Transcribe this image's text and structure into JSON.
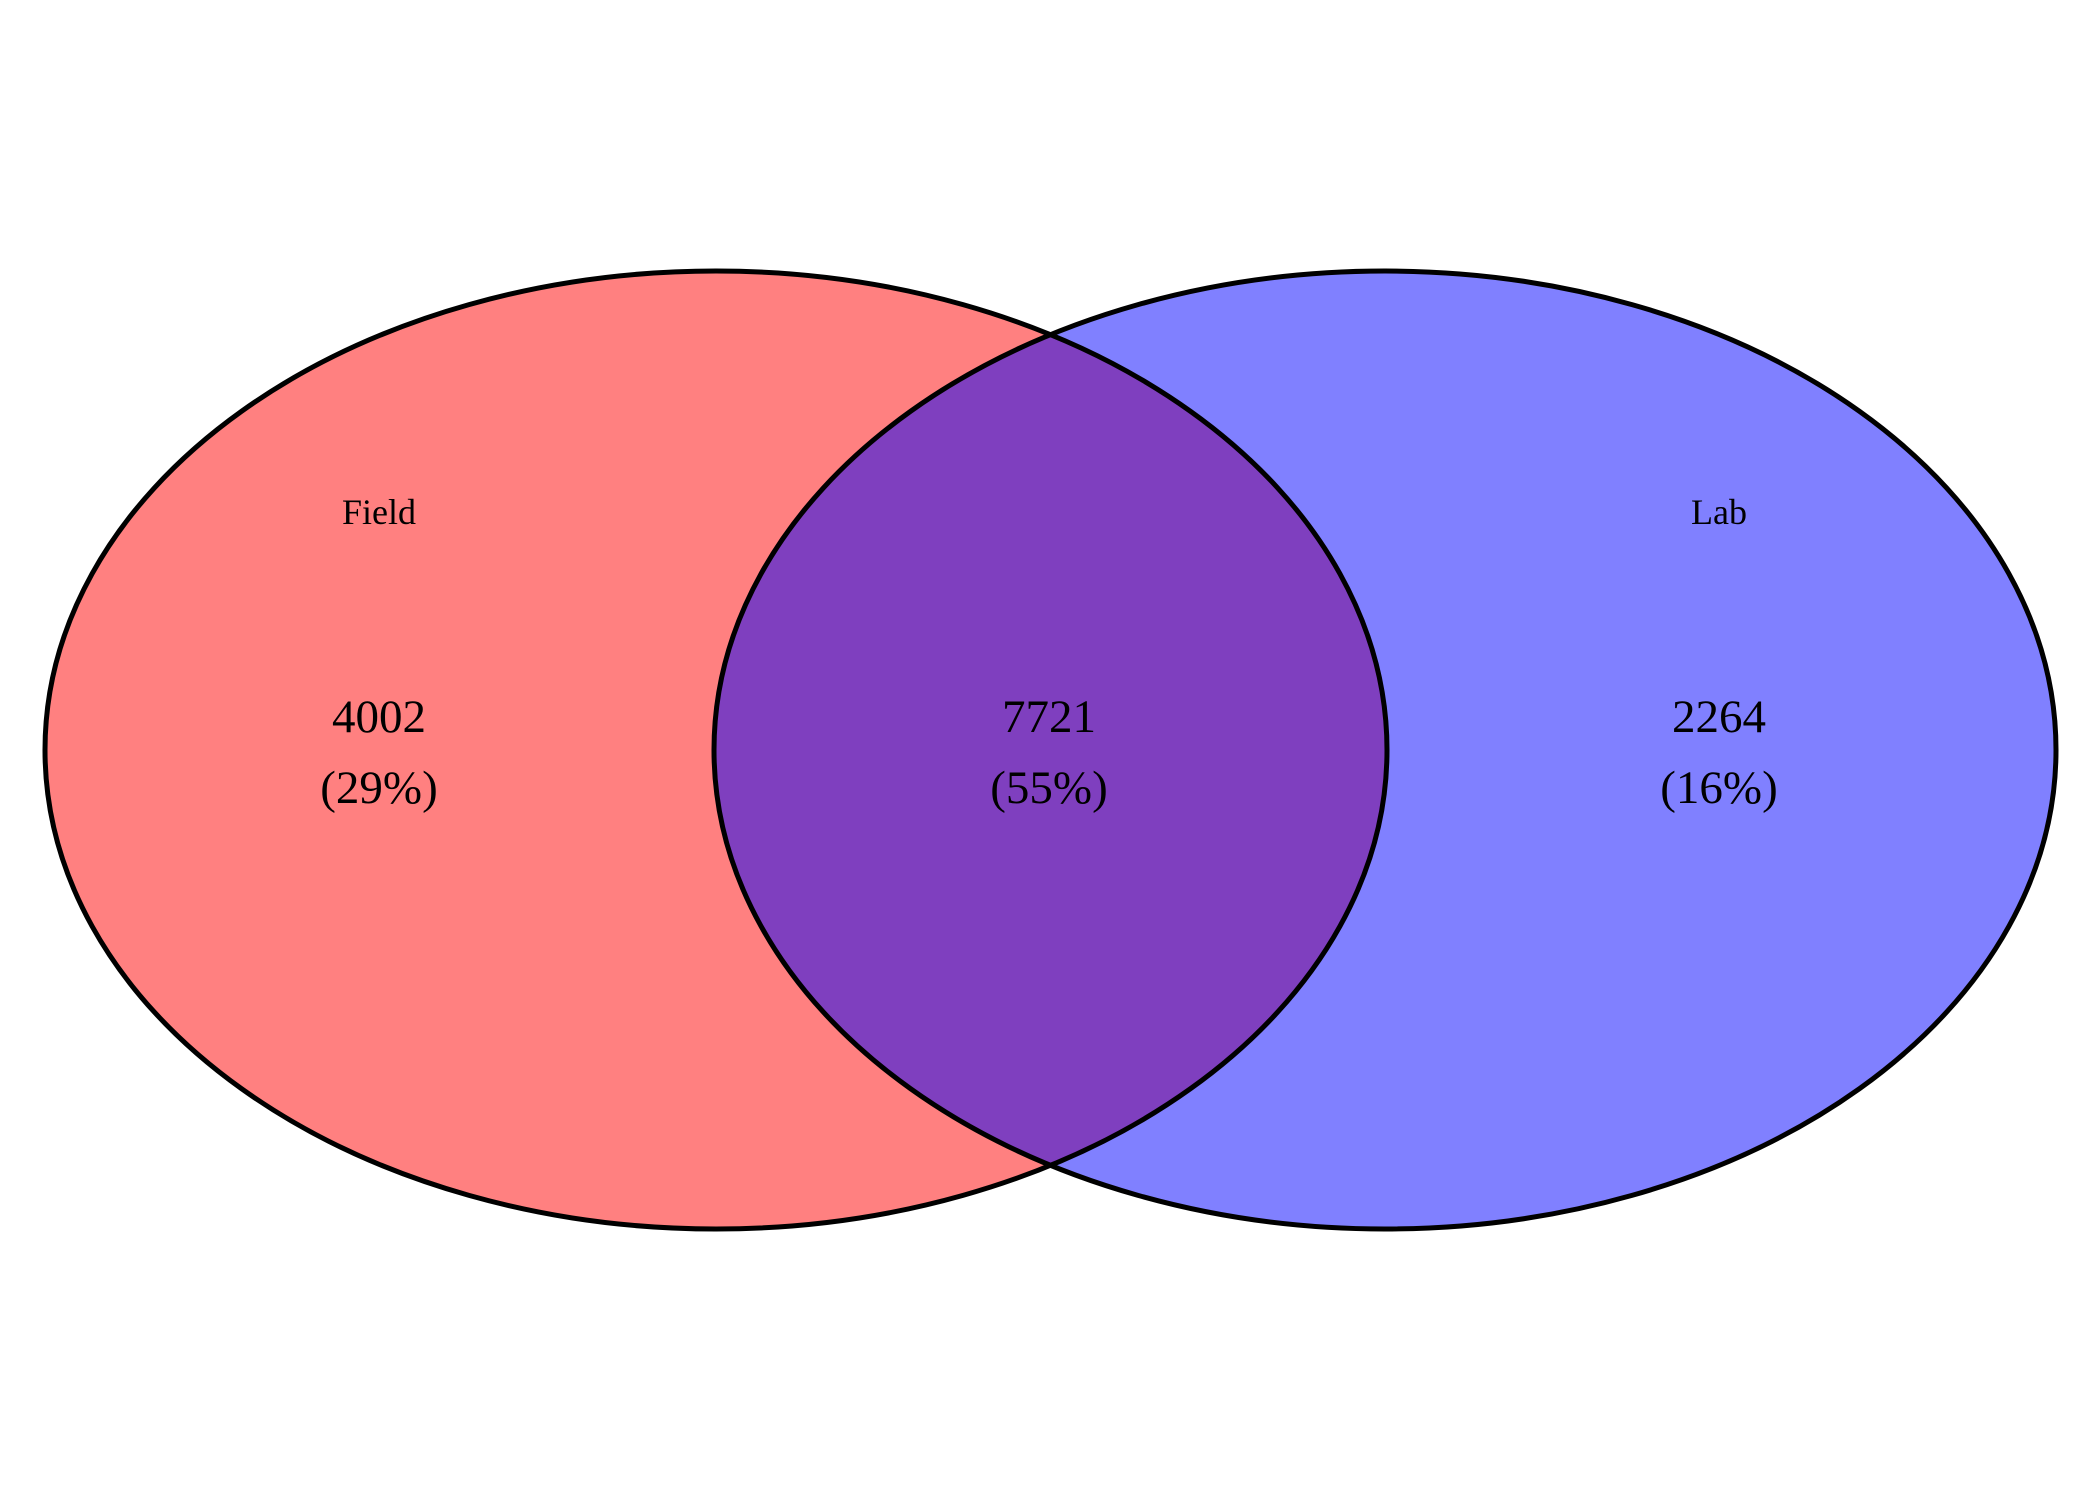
{
  "diagram": {
    "type": "venn",
    "sets": [
      {
        "name": "Field",
        "color": "#ff8080"
      },
      {
        "name": "Lab",
        "color": "#8080ff"
      }
    ],
    "overlap_color": "#7f3fbf",
    "outline_color": "#000000",
    "regions": {
      "field_only": {
        "count": "4002",
        "percent": "(29%)"
      },
      "both": {
        "count": "7721",
        "percent": "(55%)"
      },
      "lab_only": {
        "count": "2264",
        "percent": "(16%)"
      }
    }
  }
}
